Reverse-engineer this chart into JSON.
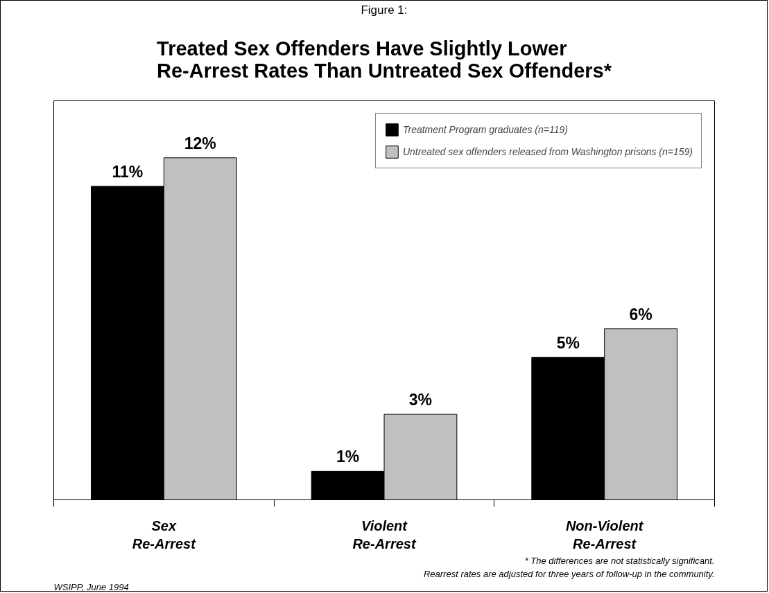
{
  "chart_data": {
    "type": "bar",
    "subtitle": "Figure 1:",
    "title": "Treated Sex Offenders Have Slightly Lower Re-Arrest Rates Than Untreated Sex Offenders*",
    "categories": [
      "Sex Re-Arrest",
      "Violent Re-Arrest",
      "Non-Violent Re-Arrest"
    ],
    "series": [
      {
        "name": "Treatment Program graduates (n=119)",
        "color": "#000000",
        "values": [
          11,
          1,
          5
        ],
        "value_labels": [
          "11%",
          "1%",
          "5%"
        ]
      },
      {
        "name": "Untreated sex offenders released from Washington prisons (n=159)",
        "color": "#c0c0c0",
        "values": [
          12,
          3,
          6
        ],
        "value_labels": [
          "12%",
          "3%",
          "6%"
        ]
      }
    ],
    "ylim": [
      0,
      14
    ],
    "tick_labels": "x",
    "grid": false,
    "legend": "top right",
    "annotations": [
      "* The differences are not statistically significant.",
      "Rearrest rates are adjusted for three years of follow-up in the community.",
      "WSIPP, June 1994"
    ]
  }
}
